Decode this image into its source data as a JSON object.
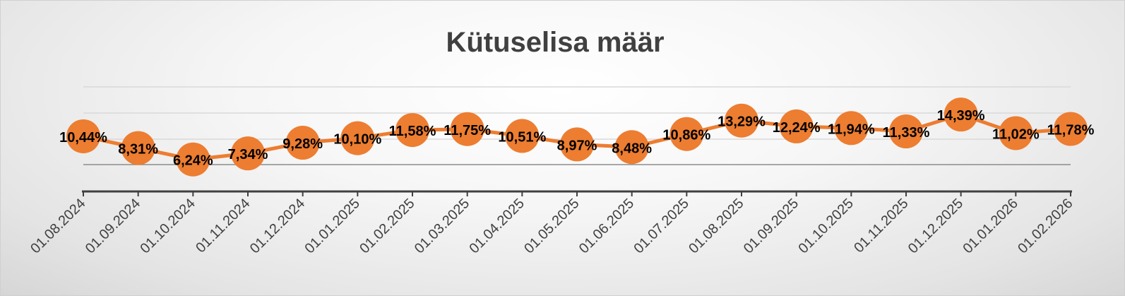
{
  "chart_data": {
    "type": "line",
    "title": "Kütuselisa määr",
    "xlabel": "",
    "ylabel": "",
    "categories": [
      "01.08.2024",
      "01.09.2024",
      "01.10.2024",
      "01.11.2024",
      "01.12.2024",
      "01.01.2025",
      "01.02.2025",
      "01.03.2025",
      "01.04.2025",
      "01.05.2025",
      "01.06.2025",
      "01.07.2025",
      "01.08.2025",
      "01.09.2025",
      "01.10.2025",
      "01.11.2025",
      "01.12.2025",
      "01.01.2026",
      "01.02.2026"
    ],
    "series": [
      {
        "values": [
          10.44,
          8.31,
          6.24,
          7.34,
          9.28,
          10.1,
          11.58,
          11.75,
          10.51,
          8.97,
          8.48,
          10.86,
          13.29,
          12.24,
          11.94,
          11.33,
          14.39,
          11.02,
          11.78
        ],
        "labels": [
          "10,44%",
          "8,31%",
          "6,24%",
          "7,34%",
          "9,28%",
          "10,10%",
          "11,58%",
          "11,75%",
          "10,51%",
          "8,97%",
          "8,48%",
          "10,86%",
          "13,29%",
          "12,24%",
          "11,94%",
          "11,33%",
          "14,39%",
          "11,02%",
          "11,78%"
        ],
        "color": "#ED7D31"
      }
    ],
    "grid": true,
    "legend": "none"
  }
}
